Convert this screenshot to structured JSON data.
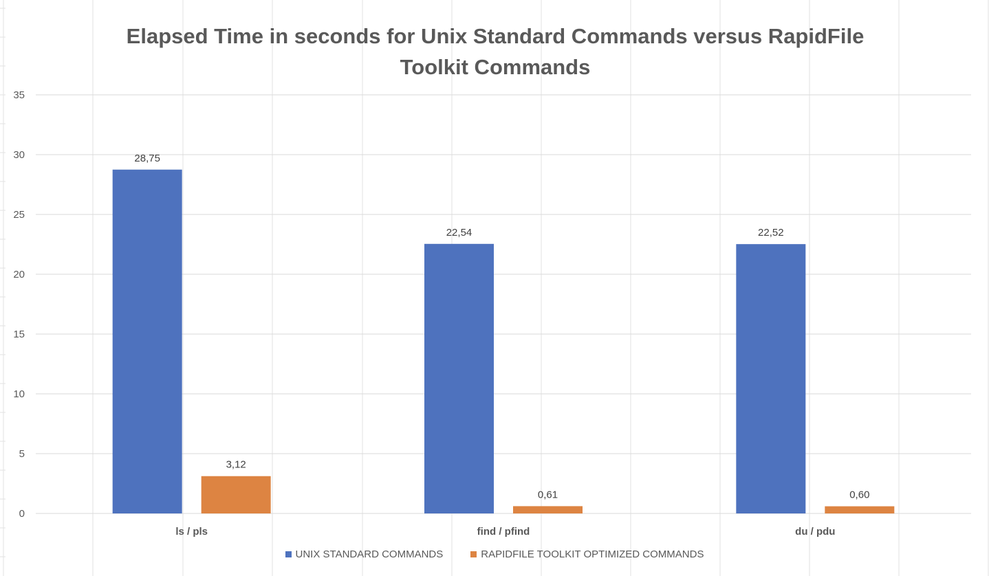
{
  "colors": {
    "series1": "#4e72be",
    "series2": "#dd8442",
    "gridline": "#d9d9d9",
    "sheet_grid": "#e2e2e2",
    "text": "#595959"
  },
  "chart_data": {
    "type": "bar",
    "title_line1": "Elapsed Time in seconds for Unix Standard Commands versus RapidFile",
    "title_line2": "Toolkit Commands",
    "categories": [
      "ls / pls",
      "find / pfind",
      "du / pdu"
    ],
    "series": [
      {
        "name": "UNIX STANDARD COMMANDS",
        "values": [
          28.75,
          22.54,
          22.52
        ],
        "labels": [
          "28,75",
          "22,54",
          "22,52"
        ]
      },
      {
        "name": "RAPIDFILE TOOLKIT OPTIMIZED COMMANDS",
        "values": [
          3.12,
          0.61,
          0.6
        ],
        "labels": [
          "3,12",
          "0,61",
          "0,60"
        ]
      }
    ],
    "ylim": [
      0,
      35
    ],
    "yticks": [
      0,
      5,
      10,
      15,
      20,
      25,
      30,
      35
    ],
    "grid": true,
    "legend": "bottom"
  }
}
